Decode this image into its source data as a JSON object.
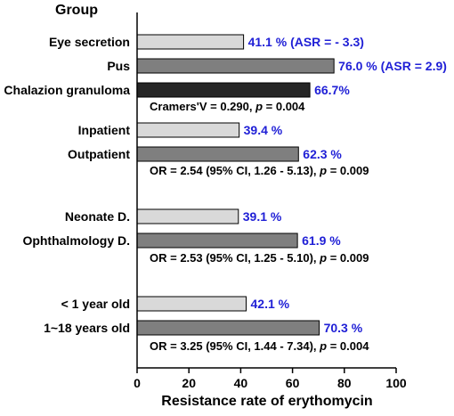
{
  "chart_data": {
    "type": "bar",
    "orientation": "horizontal",
    "group_title": "Group",
    "xlabel": "Resistance rate of erythomycin",
    "xlim": [
      0,
      100
    ],
    "xticks": [
      "0",
      "20",
      "40",
      "60",
      "80",
      "100"
    ],
    "bars": [
      {
        "label": "Eye secretion",
        "value": 41.1,
        "value_label": "41.1 % (ASR = - 3.3)",
        "color": "#d9d9d9"
      },
      {
        "label": "Pus",
        "value": 76.0,
        "value_label": "76.0 % (ASR = 2.9)",
        "color": "#7f7f7f"
      },
      {
        "label": "Chalazion granuloma",
        "value": 66.7,
        "value_label": "66.7%",
        "color": "#262626"
      },
      {
        "label": "Inpatient",
        "value": 39.4,
        "value_label": "39.4 %",
        "color": "#d9d9d9"
      },
      {
        "label": "Outpatient",
        "value": 62.3,
        "value_label": "62.3 %",
        "color": "#7f7f7f"
      },
      {
        "label": "Neonate D.",
        "value": 39.1,
        "value_label": "39.1 %",
        "color": "#d9d9d9"
      },
      {
        "label": "Ophthalmology D.",
        "value": 61.9,
        "value_label": "61.9 %",
        "color": "#7f7f7f"
      },
      {
        "label": "< 1 year old",
        "value": 42.1,
        "value_label": "42.1 %",
        "color": "#d9d9d9"
      },
      {
        "label": "1~18 years old",
        "value": 70.3,
        "value_label": "70.3 %",
        "color": "#7f7f7f"
      }
    ],
    "annotations": [
      {
        "pre": "Cramers'V = 0.290, ",
        "p_label": "p",
        "post": " = 0.004"
      },
      {
        "pre": "OR = 2.54 (95% CI, 1.26 - 5.13), ",
        "p_label": "p",
        "post": " = 0.009"
      },
      {
        "pre": "OR = 2.53 (95% CI, 1.25 - 5.10), ",
        "p_label": "p",
        "post": " = 0.009"
      },
      {
        "pre": "OR = 3.25 (95% CI, 1.44 - 7.34), ",
        "p_label": "p",
        "post": " = 0.004"
      }
    ],
    "grid": false,
    "legend": "none"
  }
}
